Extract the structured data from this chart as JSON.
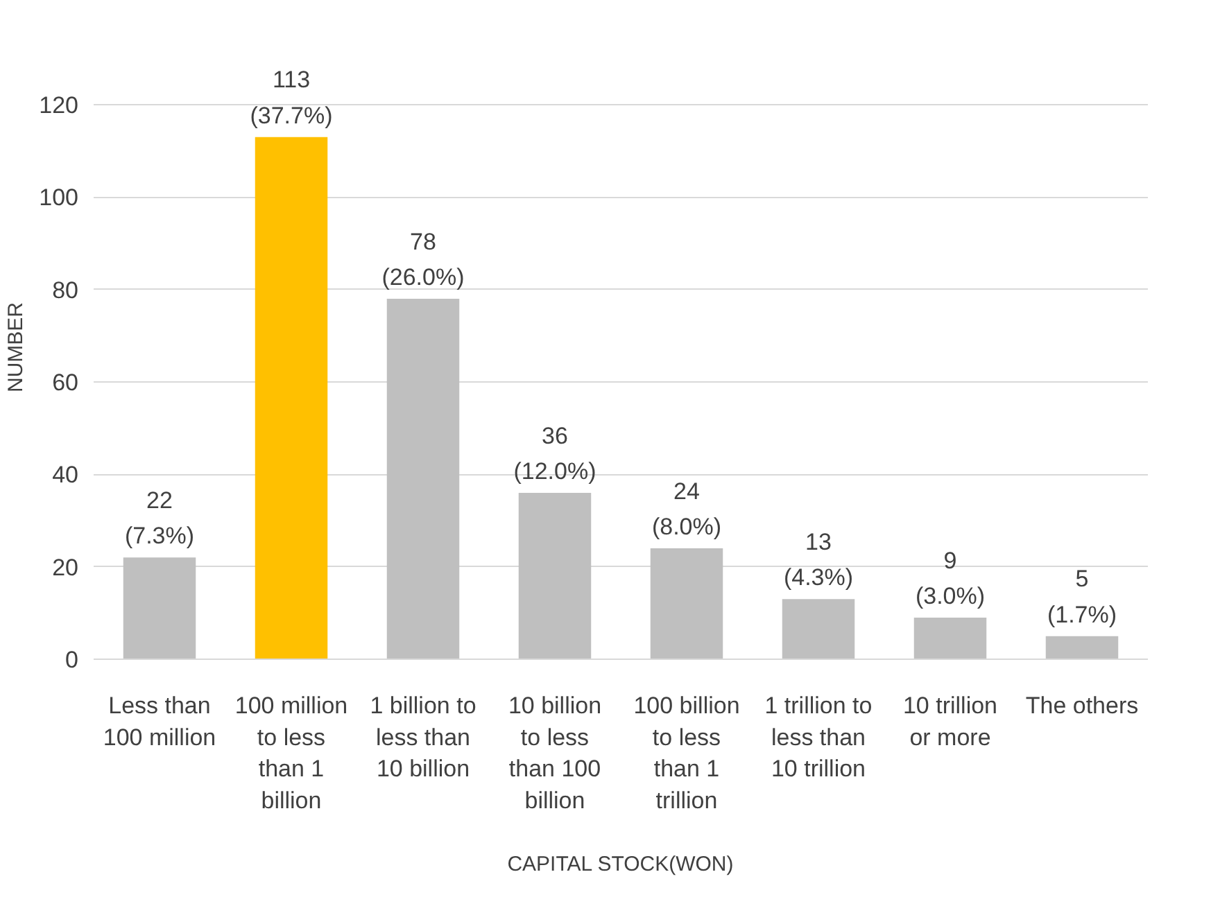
{
  "chart_data": {
    "type": "bar",
    "xlabel": "CAPITAL STOCK(WON)",
    "ylabel": "NUMBER",
    "categories": [
      "Less than\n100 million",
      "100 million\nto less\nthan 1\nbillion",
      "1 billion to\nless than\n10 billion",
      "10 billion\nto less\nthan 100\nbillion",
      "100 billion\nto less\nthan 1\ntrillion",
      "1 trillion to\nless than\n10 trillion",
      "10 trillion\nor more",
      "The others"
    ],
    "values": [
      22,
      113,
      78,
      36,
      24,
      13,
      9,
      5
    ],
    "colors": [
      "#bfbfbf",
      "#ffc000",
      "#bfbfbf",
      "#bfbfbf",
      "#bfbfbf",
      "#bfbfbf",
      "#bfbfbf",
      "#bfbfbf"
    ],
    "value_labels": [
      "22\n(7.3%)",
      "113\n(37.7%)",
      "78\n(26.0%)",
      "36\n(12.0%)",
      "24\n(8.0%)",
      "13\n(4.3%)",
      "9\n(3.0%)",
      "5\n(1.7%)"
    ],
    "ylim": [
      0,
      120
    ],
    "yticks": [
      0,
      20,
      40,
      60,
      80,
      100,
      120
    ],
    "grid": "y"
  }
}
